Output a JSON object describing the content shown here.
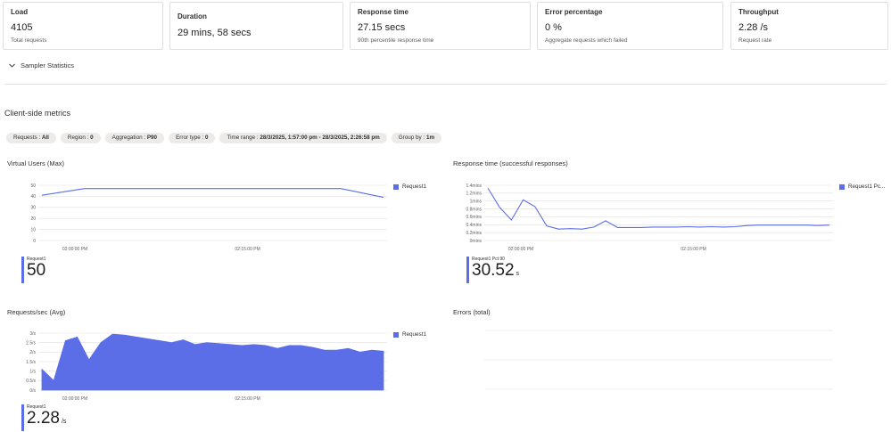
{
  "cards": [
    {
      "title": "Load",
      "value": "4105",
      "sub": "Total requests"
    },
    {
      "title": "Duration",
      "value": "29 mins, 58 secs",
      "sub": ""
    },
    {
      "title": "Response time",
      "value": "27.15 secs",
      "sub": "90th percentile response time"
    },
    {
      "title": "Error percentage",
      "value": "0 %",
      "sub": "Aggregate requests which failed"
    },
    {
      "title": "Throughput",
      "value": "2.28 /s",
      "sub": "Request rate"
    }
  ],
  "sampler": {
    "label": "Sampler Statistics"
  },
  "client_side": {
    "title": "Client-side metrics"
  },
  "filters": [
    {
      "key": "Requests : ",
      "value": "All"
    },
    {
      "key": "Region : ",
      "value": "0"
    },
    {
      "key": "Aggregation : ",
      "value": "P90"
    },
    {
      "key": "Error type : ",
      "value": "0"
    },
    {
      "key": "Time range : ",
      "value": "28/3/2025, 1:57:00 pm - 28/3/2025, 2:26:58 pm"
    },
    {
      "key": "Group by : ",
      "value": "1m"
    }
  ],
  "panels": {
    "vu": {
      "title": "Virtual Users (Max)",
      "legend": "Request1",
      "big_label": "Request1",
      "big_value": "50",
      "big_unit": ""
    },
    "rt": {
      "title": "Response time (successful responses)",
      "legend": "Request1 Pc...",
      "big_label": "Request1 Pct 90",
      "big_value": "30.52",
      "big_unit": "s"
    },
    "rps": {
      "title": "Requests/sec (Avg)",
      "legend": "Request1",
      "big_label": "Request1",
      "big_value": "2.28",
      "big_unit": "/s"
    },
    "err": {
      "title": "Errors (total)"
    }
  },
  "chart_data": [
    {
      "type": "line",
      "title": "Virtual Users (Max)",
      "x_ticks": [
        "02:00:00 PM",
        "02:15:00 PM"
      ],
      "y_ticks": [
        "0",
        "10",
        "20",
        "30",
        "40",
        "50"
      ],
      "ylim": [
        0,
        50
      ],
      "x": [
        "1:57",
        "1:58",
        "2:00",
        "2:05",
        "2:10",
        "2:15",
        "2:20",
        "2:25",
        "2:26"
      ],
      "series": [
        {
          "name": "Request1",
          "values": [
            41,
            47,
            47,
            47,
            47,
            47,
            47,
            47,
            39
          ]
        }
      ],
      "color": "#5b6ee8"
    },
    {
      "type": "line",
      "title": "Response time (successful responses)",
      "x_ticks": [
        "02:00:00 PM",
        "02:15:00 PM"
      ],
      "y_ticks": [
        "0mins",
        "0.2mins",
        "0.4mins",
        "0.6mins",
        "0.8mins",
        "1mins",
        "1.2mins",
        "1.4mins"
      ],
      "ylim": [
        0,
        1.4
      ],
      "x": [
        "1:57",
        "1:58",
        "1:59",
        "2:00",
        "2:01",
        "2:02",
        "2:03",
        "2:04",
        "2:05",
        "2:06",
        "2:07",
        "2:08",
        "2:09",
        "2:10",
        "2:11",
        "2:12",
        "2:13",
        "2:14",
        "2:15",
        "2:16",
        "2:17",
        "2:18",
        "2:19",
        "2:20",
        "2:21",
        "2:22",
        "2:23",
        "2:24",
        "2:25",
        "2:26"
      ],
      "series": [
        {
          "name": "Request1 Pct 90",
          "values": [
            1.33,
            0.84,
            0.52,
            1.03,
            0.86,
            0.37,
            0.29,
            0.3,
            0.29,
            0.34,
            0.5,
            0.33,
            0.33,
            0.33,
            0.34,
            0.34,
            0.34,
            0.35,
            0.34,
            0.35,
            0.34,
            0.35,
            0.38,
            0.39,
            0.39,
            0.39,
            0.39,
            0.39,
            0.38,
            0.39
          ]
        }
      ],
      "color": "#5b6ee8"
    },
    {
      "type": "area",
      "title": "Requests/sec (Avg)",
      "x_ticks": [
        "02:00:00 PM",
        "02:15:00 PM"
      ],
      "y_ticks": [
        "0/s",
        "0.5/s",
        "1/s",
        "1.5/s",
        "2/s",
        "2.5/s",
        "3/s"
      ],
      "ylim": [
        0,
        3
      ],
      "x": [
        "1:57",
        "1:58",
        "1:59",
        "2:00",
        "2:01",
        "2:02",
        "2:03",
        "2:04",
        "2:05",
        "2:06",
        "2:07",
        "2:08",
        "2:09",
        "2:10",
        "2:11",
        "2:12",
        "2:13",
        "2:14",
        "2:15",
        "2:16",
        "2:17",
        "2:18",
        "2:19",
        "2:20",
        "2:21",
        "2:22",
        "2:23",
        "2:24",
        "2:25",
        "2:26"
      ],
      "series": [
        {
          "name": "Request1",
          "values": [
            1.1,
            0.5,
            2.6,
            2.8,
            1.6,
            2.5,
            2.95,
            2.9,
            2.8,
            2.7,
            2.6,
            2.5,
            2.65,
            2.4,
            2.5,
            2.45,
            2.4,
            2.35,
            2.4,
            2.35,
            2.2,
            2.35,
            2.35,
            2.25,
            2.1,
            2.1,
            2.2,
            2.0,
            2.1,
            2.05
          ]
        }
      ],
      "color": "#5b6ee8"
    },
    {
      "type": "line",
      "title": "Errors (total)",
      "series": []
    }
  ]
}
